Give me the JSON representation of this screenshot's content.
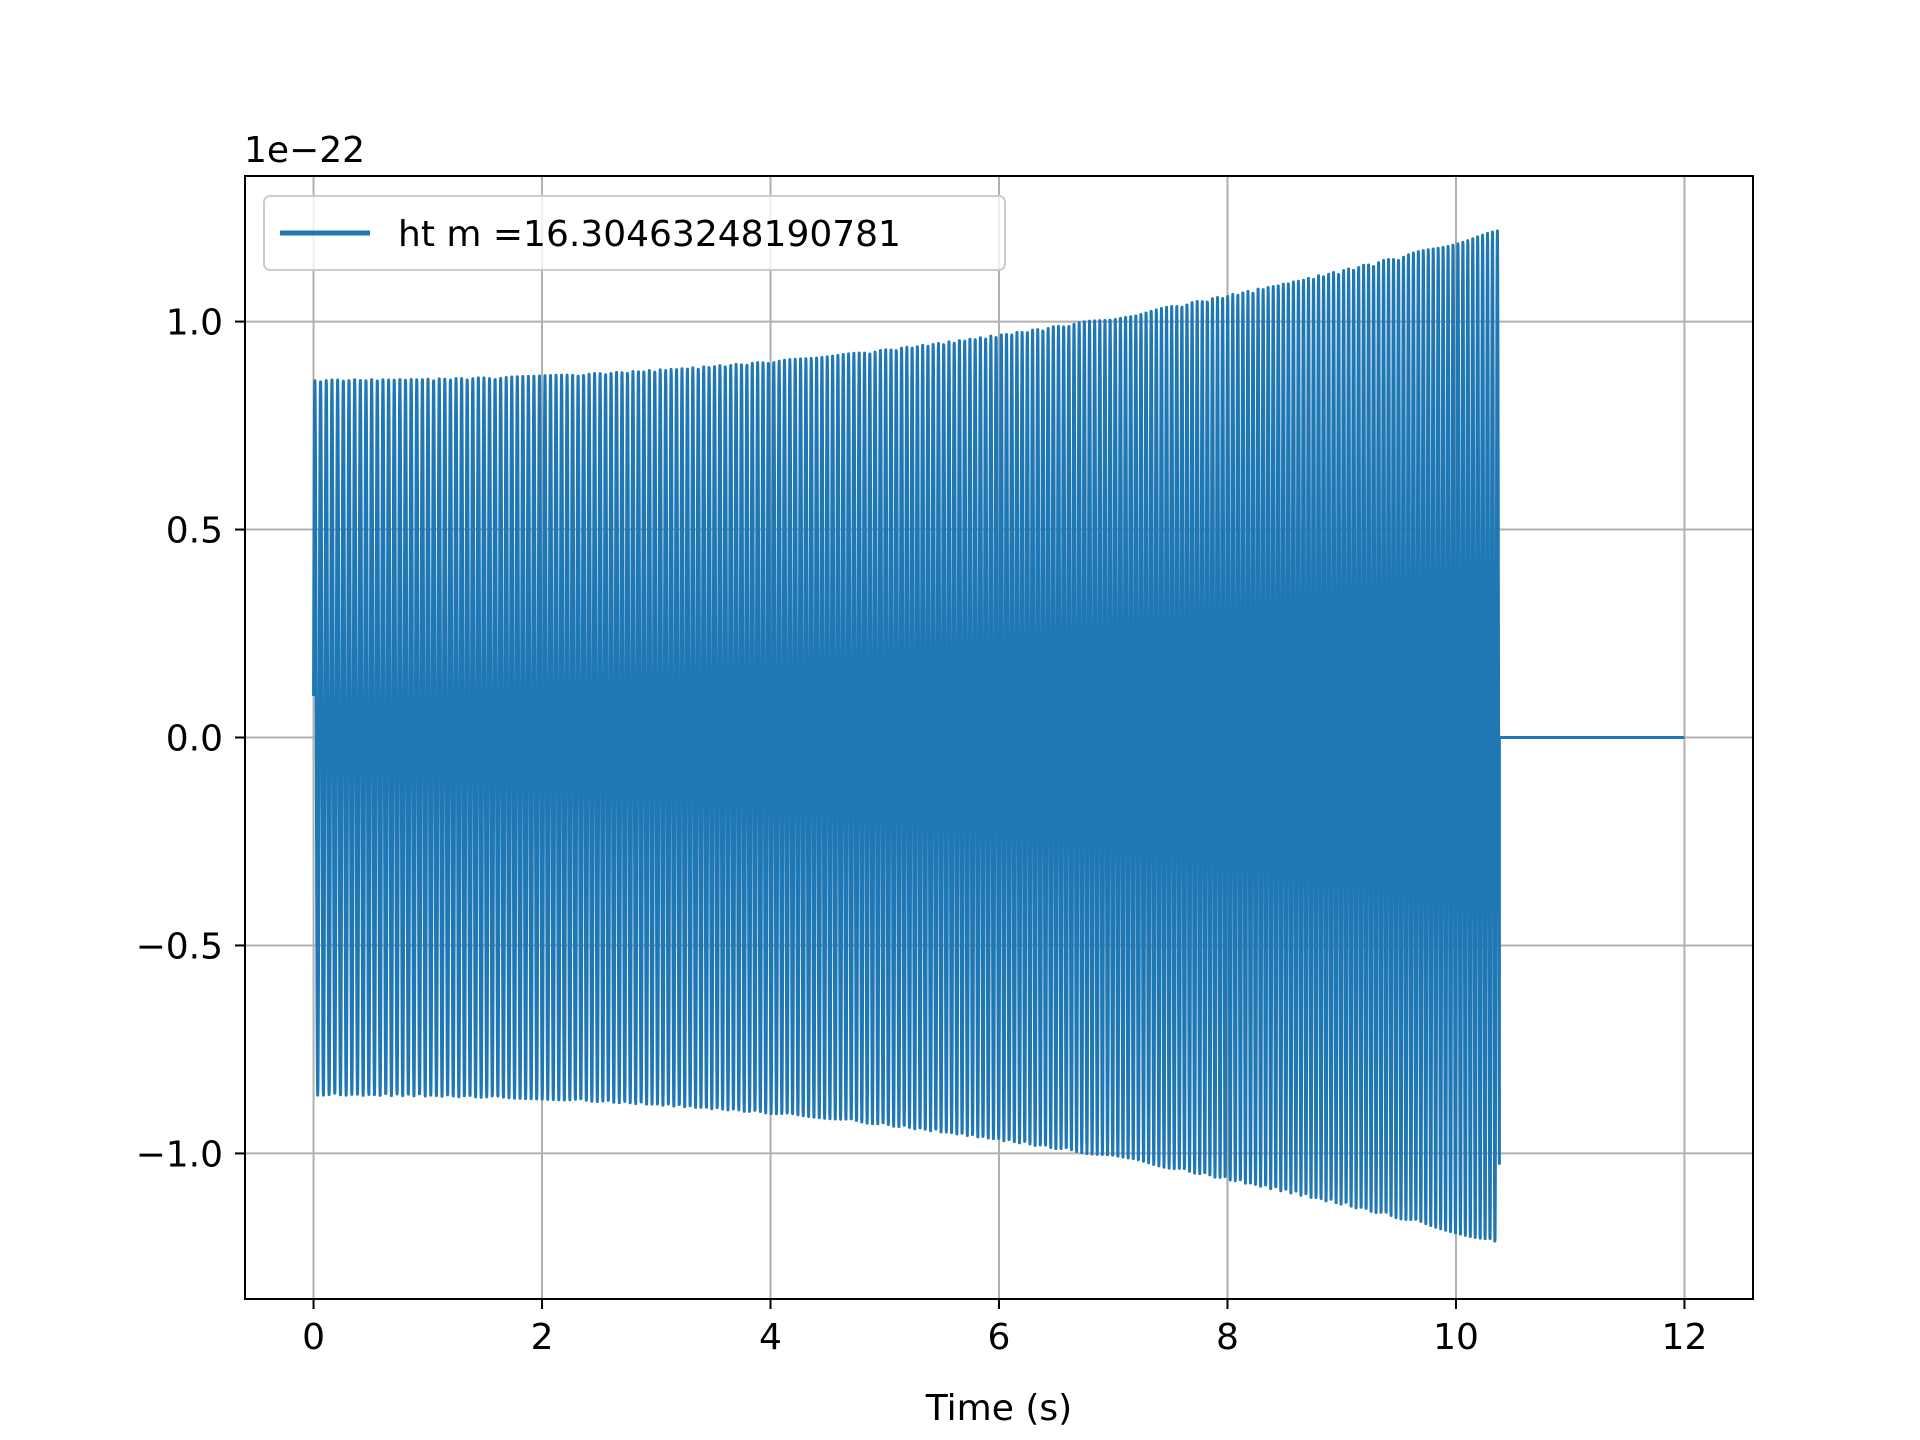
{
  "chart_data": {
    "type": "line",
    "xlabel": "Time (s)",
    "ylabel": "",
    "y_offset_label": "1e−22",
    "xlim": [
      -0.6,
      12.6
    ],
    "ylim": [
      -1.35,
      1.35
    ],
    "x_ticks": [
      0,
      2,
      4,
      6,
      8,
      10,
      12
    ],
    "x_tick_labels": [
      "0",
      "2",
      "4",
      "6",
      "8",
      "10",
      "12"
    ],
    "y_ticks": [
      -1.0,
      -0.5,
      0.0,
      0.5,
      1.0
    ],
    "y_tick_labels": [
      "−1.0",
      "−0.5",
      "0.0",
      "0.5",
      "1.0"
    ],
    "grid": true,
    "legend_position": "top-left",
    "series": [
      {
        "name": "ht m =16.30463248190781",
        "color": "#1f77b4",
        "signal": {
          "t_start": 0.0,
          "t_end": 10.38,
          "t_zero_end": 12.0,
          "amp_start": 0.86,
          "amp_end": 1.22,
          "initial_value": 0.1,
          "n_cycles": 208
        }
      }
    ]
  }
}
